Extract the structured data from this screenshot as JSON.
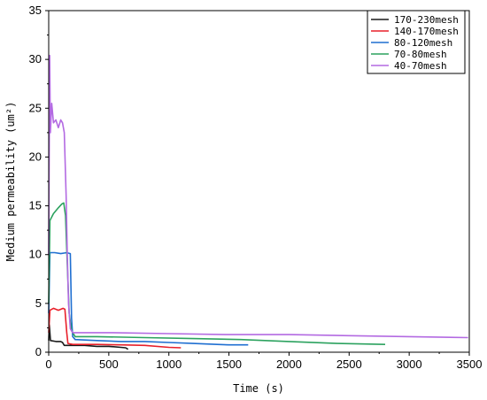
{
  "chart_data": {
    "type": "line",
    "xlabel": "Time (s)",
    "ylabel": "Medium permeability (um²)",
    "xlim": [
      0,
      3500
    ],
    "ylim": [
      0,
      35
    ],
    "x_ticks": [
      "0",
      "500",
      "1000",
      "1500",
      "2000",
      "2500",
      "3000",
      "3500"
    ],
    "y_ticks": [
      "0",
      "5",
      "10",
      "15",
      "20",
      "25",
      "30",
      "35"
    ],
    "legend_position": "top-right",
    "series": [
      {
        "name": "170-230mesh",
        "color": "#1a1a1a",
        "points": [
          [
            0,
            1.2
          ],
          [
            5,
            2.8
          ],
          [
            15,
            1.2
          ],
          [
            60,
            1.1
          ],
          [
            100,
            1.1
          ],
          [
            115,
            1.0
          ],
          [
            130,
            0.7
          ],
          [
            200,
            0.7
          ],
          [
            300,
            0.7
          ],
          [
            400,
            0.6
          ],
          [
            500,
            0.6
          ],
          [
            600,
            0.5
          ],
          [
            640,
            0.45
          ],
          [
            660,
            0.3
          ]
        ]
      },
      {
        "name": "140-170mesh",
        "color": "#e8202a",
        "points": [
          [
            0,
            2.0
          ],
          [
            10,
            4.3
          ],
          [
            40,
            4.5
          ],
          [
            80,
            4.3
          ],
          [
            120,
            4.5
          ],
          [
            135,
            4.4
          ],
          [
            150,
            2.0
          ],
          [
            160,
            0.9
          ],
          [
            200,
            0.8
          ],
          [
            400,
            0.8
          ],
          [
            600,
            0.75
          ],
          [
            800,
            0.7
          ],
          [
            1000,
            0.5
          ],
          [
            1100,
            0.45
          ]
        ]
      },
      {
        "name": "80-120mesh",
        "color": "#1f6fd1",
        "points": [
          [
            0,
            4.0
          ],
          [
            10,
            10.2
          ],
          [
            50,
            10.2
          ],
          [
            100,
            10.1
          ],
          [
            150,
            10.2
          ],
          [
            180,
            10.1
          ],
          [
            190,
            3.5
          ],
          [
            200,
            1.6
          ],
          [
            220,
            1.3
          ],
          [
            400,
            1.2
          ],
          [
            600,
            1.1
          ],
          [
            800,
            1.1
          ],
          [
            1000,
            1.0
          ],
          [
            1200,
            0.9
          ],
          [
            1400,
            0.8
          ],
          [
            1500,
            0.75
          ],
          [
            1660,
            0.75
          ]
        ]
      },
      {
        "name": "70-80mesh",
        "color": "#2ca25f",
        "points": [
          [
            0,
            5.0
          ],
          [
            10,
            13.5
          ],
          [
            40,
            14.2
          ],
          [
            80,
            14.8
          ],
          [
            110,
            15.2
          ],
          [
            125,
            15.3
          ],
          [
            140,
            14.0
          ],
          [
            155,
            9.0
          ],
          [
            170,
            4.0
          ],
          [
            190,
            2.2
          ],
          [
            220,
            1.6
          ],
          [
            400,
            1.6
          ],
          [
            800,
            1.5
          ],
          [
            1200,
            1.4
          ],
          [
            1600,
            1.3
          ],
          [
            2000,
            1.1
          ],
          [
            2400,
            0.9
          ],
          [
            2800,
            0.8
          ]
        ]
      },
      {
        "name": "40-70mesh",
        "color": "#b36ae2",
        "points": [
          [
            0,
            10.0
          ],
          [
            8,
            30.4
          ],
          [
            14,
            22.5
          ],
          [
            25,
            25.5
          ],
          [
            40,
            23.5
          ],
          [
            60,
            23.8
          ],
          [
            80,
            23.0
          ],
          [
            100,
            23.8
          ],
          [
            115,
            23.5
          ],
          [
            130,
            22.5
          ],
          [
            145,
            16.0
          ],
          [
            155,
            10.0
          ],
          [
            165,
            5.0
          ],
          [
            180,
            2.4
          ],
          [
            200,
            2.0
          ],
          [
            300,
            2.0
          ],
          [
            500,
            2.0
          ],
          [
            1000,
            1.9
          ],
          [
            1500,
            1.8
          ],
          [
            2000,
            1.8
          ],
          [
            2500,
            1.7
          ],
          [
            3000,
            1.6
          ],
          [
            3490,
            1.5
          ]
        ]
      }
    ]
  }
}
